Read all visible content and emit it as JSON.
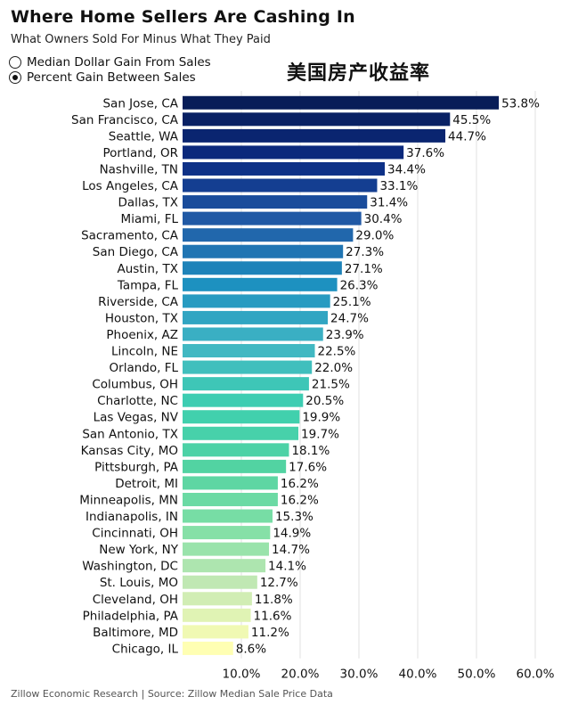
{
  "header": {
    "title": "Where Home Sellers Are Cashing In",
    "subtitle": "What Owners Sold For Minus What They Paid",
    "cn_title": "美国房产收益率"
  },
  "controls": {
    "options": [
      {
        "label": "Median Dollar Gain From Sales",
        "selected": false
      },
      {
        "label": "Percent Gain Between Sales",
        "selected": true
      }
    ]
  },
  "footer": {
    "source": "Zillow Economic Research | Source: Zillow Median Sale Price Data"
  },
  "chart_data": {
    "type": "bar",
    "orientation": "horizontal",
    "title": "Where Home Sellers Are Cashing In",
    "xlabel": "",
    "ylabel": "",
    "xlim": [
      0,
      60
    ],
    "grid": true,
    "value_suffix": "%",
    "x_ticks": [
      "10.0%",
      "20.0%",
      "30.0%",
      "40.0%",
      "50.0%",
      "60.0%"
    ],
    "categories": [
      "San Jose, CA",
      "San Francisco, CA",
      "Seattle, WA",
      "Portland, OR",
      "Nashville, TN",
      "Los Angeles, CA",
      "Dallas, TX",
      "Miami, FL",
      "Sacramento, CA",
      "San Diego, CA",
      "Austin, TX",
      "Tampa, FL",
      "Riverside, CA",
      "Houston, TX",
      "Phoenix, AZ",
      "Lincoln, NE",
      "Orlando, FL",
      "Columbus, OH",
      "Charlotte, NC",
      "Las Vegas, NV",
      "San Antonio, TX",
      "Kansas City, MO",
      "Pittsburgh, PA",
      "Detroit, MI",
      "Minneapolis, MN",
      "Indianapolis, IN",
      "Cincinnati, OH",
      "New York, NY",
      "Washington, DC",
      "St. Louis, MO",
      "Cleveland, OH",
      "Philadelphia, PA",
      "Baltimore, MD",
      "Chicago, IL"
    ],
    "values": [
      53.8,
      45.5,
      44.7,
      37.6,
      34.4,
      33.1,
      31.4,
      30.4,
      29.0,
      27.3,
      27.1,
      26.3,
      25.1,
      24.7,
      23.9,
      22.5,
      22.0,
      21.5,
      20.5,
      19.9,
      19.7,
      18.1,
      17.6,
      16.2,
      16.2,
      15.3,
      14.9,
      14.7,
      14.1,
      12.7,
      11.8,
      11.6,
      11.2,
      8.6
    ],
    "labels": [
      "53.8%",
      "45.5%",
      "44.7%",
      "37.6%",
      "34.4%",
      "33.1%",
      "31.4%",
      "30.4%",
      "29.0%",
      "27.3%",
      "27.1%",
      "26.3%",
      "25.1%",
      "24.7%",
      "23.9%",
      "22.5%",
      "22.0%",
      "21.5%",
      "20.5%",
      "19.9%",
      "19.7%",
      "18.1%",
      "17.6%",
      "16.2%",
      "16.2%",
      "15.3%",
      "14.9%",
      "14.7%",
      "14.1%",
      "12.7%",
      "11.8%",
      "11.6%",
      "11.2%",
      "8.6%"
    ],
    "color_scale": [
      "#081d58",
      "#0c2c84",
      "#225ea8",
      "#1d91c0",
      "#41b6c4",
      "#3dcfb0",
      "#52d3a2",
      "#7fdfa6",
      "#c7e9b4",
      "#ffffb3"
    ]
  }
}
